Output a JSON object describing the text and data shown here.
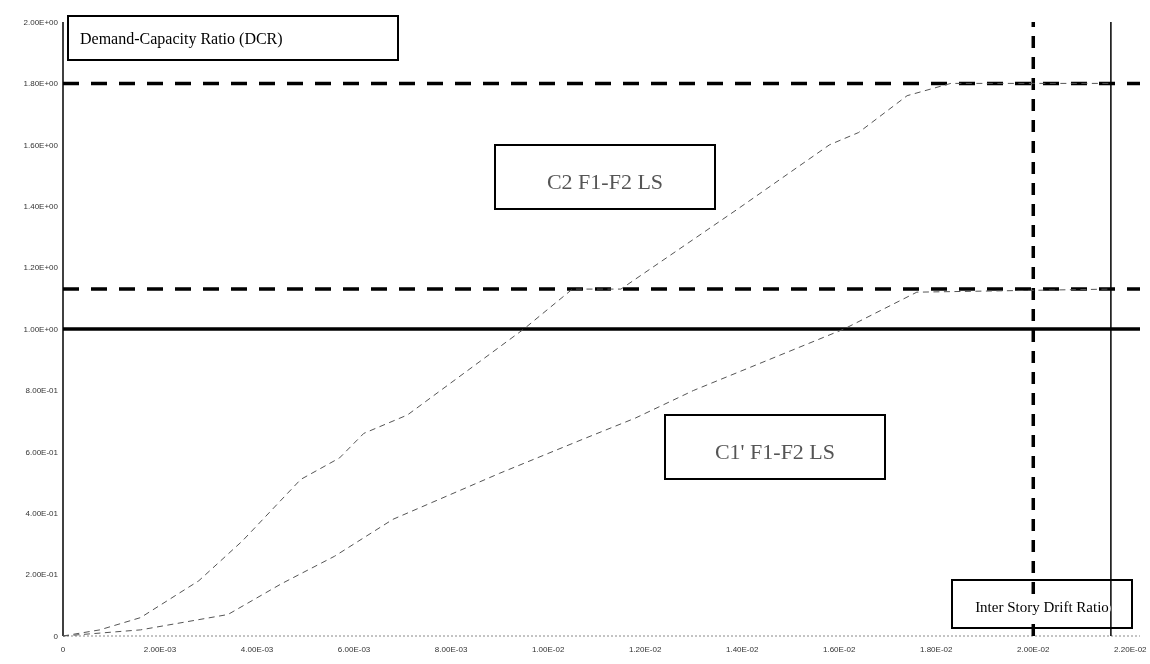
{
  "chart_data": {
    "type": "line",
    "xlabel": "Inter Story Drift Ratio",
    "ylabel": "Demand-Capacity Ratio (DCR)",
    "xlim": [
      0,
      0.0222
    ],
    "ylim": [
      0,
      2
    ],
    "xticks": [
      0,
      {
        "value": 0.002,
        "label": "2.00E-03"
      },
      {
        "value": 0.004,
        "label": "4.00E-03"
      },
      {
        "value": 0.006,
        "label": "6.00E-03"
      },
      {
        "value": 0.008,
        "label": "8.00E-03"
      },
      {
        "value": 0.01,
        "label": "1.00E-02"
      },
      {
        "value": 0.012,
        "label": "1.20E-02"
      },
      {
        "value": 0.014,
        "label": "1.40E-02"
      },
      {
        "value": 0.016,
        "label": "1.60E-02"
      },
      {
        "value": 0.018,
        "label": "1.80E-02"
      },
      {
        "value": 0.02,
        "label": "2.00E-02"
      },
      {
        "value": 0.022,
        "label": "2.20E-02"
      }
    ],
    "yticks": [
      0,
      {
        "value": 0.2,
        "label": "2.00E-01"
      },
      {
        "value": 0.4,
        "label": "4.00E-01"
      },
      {
        "value": 0.6,
        "label": "6.00E-01"
      },
      {
        "value": 0.8,
        "label": "8.00E-01"
      },
      {
        "value": 1,
        "label": "1.00E+00"
      },
      {
        "value": 1.2,
        "label": "1.20E+00"
      },
      {
        "value": 1.4,
        "label": "1.40E+00"
      },
      {
        "value": 1.6,
        "label": "1.60E+00"
      },
      {
        "value": 1.8,
        "label": "1.80E+00"
      },
      {
        "value": 2,
        "label": "2.00E+00"
      }
    ],
    "grid": false,
    "line_style": "dashed",
    "marker": "none",
    "series": [
      {
        "name": "C2 F1-F2 LS",
        "color": "#555555",
        "x": [
          0,
          0.00076,
          0.0016,
          0.0028,
          0.0037,
          0.0049,
          0.0057,
          0.0062,
          0.0071,
          0.0095,
          0.0105,
          0.0115,
          0.0139,
          0.0158,
          0.0164,
          0.0174,
          0.0183,
          0.0216
        ],
        "values": [
          0,
          0.02,
          0.06,
          0.18,
          0.31,
          0.51,
          0.58,
          0.66,
          0.72,
          1.0,
          1.13,
          1.13,
          1.39,
          1.6,
          1.64,
          1.76,
          1.8,
          1.8
        ]
      },
      {
        "name": "C1' F1-F2 LS",
        "color": "#555555",
        "x": [
          0,
          0.0016,
          0.0034,
          0.0045,
          0.0056,
          0.0068,
          0.009,
          0.0107,
          0.0118,
          0.013,
          0.0161,
          0.0176,
          0.0216
        ],
        "values": [
          0,
          0.02,
          0.07,
          0.17,
          0.26,
          0.38,
          0.53,
          0.64,
          0.71,
          0.8,
          1.0,
          1.12,
          1.13
        ]
      }
    ],
    "ref_lines": [
      {
        "axis": "y",
        "value": 1.8,
        "color": "#000000",
        "line_style": "dashed"
      },
      {
        "axis": "y",
        "value": 1.13,
        "color": "#000000",
        "line_style": "dashed"
      },
      {
        "axis": "y",
        "value": 1,
        "color": "#000000",
        "line_style": "solid"
      },
      {
        "axis": "x",
        "value": 0.02,
        "color": "#000000",
        "line_style": "dashed"
      },
      {
        "axis": "x",
        "value": 0.0216,
        "color": "#000000",
        "line_style": "solid"
      }
    ]
  }
}
